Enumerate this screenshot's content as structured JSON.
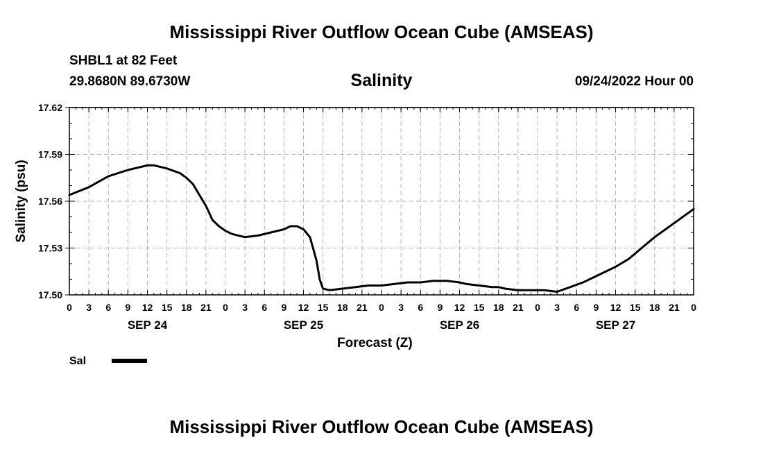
{
  "header": {
    "title": "Mississippi River Outflow Ocean Cube (AMSEAS)",
    "station": "SHBL1 at 82 Feet",
    "coordinates": "29.8680N  89.6730W",
    "timestamp": "09/24/2022 Hour 00"
  },
  "footer": {
    "title": "Mississippi River Outflow Ocean Cube (AMSEAS)"
  },
  "chart_data": {
    "type": "line",
    "title": "Salinity",
    "xlabel": "Forecast (Z)",
    "ylabel": "Salinity (psu)",
    "ylim": [
      17.5,
      17.62
    ],
    "yticks": [
      "17.62",
      "17.59",
      "17.56",
      "17.53",
      "17.50"
    ],
    "xlim": [
      0,
      96
    ],
    "xtick_labels": [
      "0",
      "3",
      "6",
      "9",
      "12",
      "15",
      "18",
      "21",
      "0",
      "3",
      "6",
      "9",
      "12",
      "15",
      "18",
      "21",
      "0",
      "3",
      "6",
      "9",
      "12",
      "15",
      "18",
      "21",
      "0",
      "3",
      "6",
      "9",
      "12",
      "15",
      "18",
      "21",
      "0"
    ],
    "date_labels": [
      {
        "label": "SEP 24",
        "hour": 12
      },
      {
        "label": "SEP 25",
        "hour": 36
      },
      {
        "label": "SEP 26",
        "hour": 60
      },
      {
        "label": "SEP 27",
        "hour": 84
      }
    ],
    "grid": true,
    "legend_position": "bottom-left",
    "series": [
      {
        "name": "Sal",
        "color": "#000000",
        "x": [
          0,
          3,
          6,
          9,
          12,
          13,
          15,
          17,
          18,
          19,
          20,
          21,
          22,
          23,
          24,
          25,
          27,
          29,
          31,
          33,
          34,
          35,
          36,
          37,
          38,
          38.5,
          39,
          40,
          42,
          44,
          46,
          48,
          50,
          52,
          54,
          56,
          58,
          60,
          61,
          63,
          65,
          66,
          67,
          69,
          71,
          73,
          75,
          77,
          79,
          80,
          81,
          84,
          86,
          88,
          90,
          92,
          94,
          96
        ],
        "y": [
          17.564,
          17.569,
          17.576,
          17.58,
          17.583,
          17.583,
          17.581,
          17.578,
          17.575,
          17.571,
          17.564,
          17.557,
          17.548,
          17.544,
          17.541,
          17.539,
          17.537,
          17.538,
          17.54,
          17.542,
          17.544,
          17.544,
          17.542,
          17.537,
          17.522,
          17.51,
          17.504,
          17.503,
          17.504,
          17.505,
          17.506,
          17.506,
          17.507,
          17.508,
          17.508,
          17.509,
          17.509,
          17.508,
          17.507,
          17.506,
          17.505,
          17.505,
          17.504,
          17.503,
          17.503,
          17.503,
          17.502,
          17.505,
          17.508,
          17.51,
          17.512,
          17.518,
          17.523,
          17.53,
          17.537,
          17.543,
          17.549,
          17.555
        ]
      }
    ]
  }
}
